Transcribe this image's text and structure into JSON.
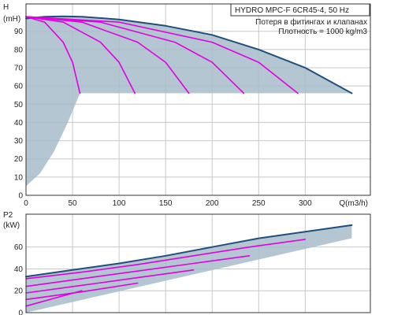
{
  "chart_data": [
    {
      "type": "line",
      "title": "HYDRO MPC-F 6CR45-4, 50 Hz",
      "annotations": [
        "Потеря в фитингах и клапанах",
        "Плотность = 1000 kg/m3"
      ],
      "ylabel": "H",
      "yunit": "(mH)",
      "xlabel": "Q(m3/h)",
      "xlim": [
        0,
        370
      ],
      "ylim": [
        0,
        105
      ],
      "xticks": [
        0,
        50,
        100,
        150,
        200,
        250,
        300
      ],
      "yticks": [
        0,
        10,
        20,
        30,
        40,
        50,
        60,
        70,
        80,
        90
      ],
      "grid": true,
      "colors": {
        "envelope": "#1f4f7a",
        "pump_curves": "#e000e0",
        "area": "#a8bccb"
      },
      "series": [
        {
          "x": [
            0,
            20,
            40,
            60,
            100,
            150,
            200,
            250,
            300,
            350
          ],
          "y": [
            97,
            98,
            98.2,
            98,
            96.5,
            93,
            88,
            80,
            70,
            56
          ]
        },
        {
          "x": [
            0,
            20,
            40,
            50,
            58
          ],
          "y": [
            98,
            95,
            84,
            73,
            56
          ]
        },
        {
          "x": [
            0,
            40,
            80,
            100,
            117
          ],
          "y": [
            98,
            95,
            84,
            73,
            56
          ]
        },
        {
          "x": [
            0,
            60,
            120,
            150,
            175
          ],
          "y": [
            98,
            95,
            84,
            73,
            56
          ]
        },
        {
          "x": [
            0,
            80,
            160,
            200,
            234
          ],
          "y": [
            98,
            95,
            84,
            73,
            56
          ]
        },
        {
          "x": [
            0,
            100,
            200,
            250,
            292
          ],
          "y": [
            98,
            95,
            84,
            73,
            56
          ]
        }
      ],
      "area_left_boundary": {
        "x": [
          0,
          15,
          30,
          45,
          58
        ],
        "y": [
          5,
          12,
          24,
          40,
          56
        ]
      }
    },
    {
      "type": "line",
      "ylabel": "P2",
      "yunit": "(kW)",
      "xlim": [
        0,
        370
      ],
      "ylim": [
        0,
        90
      ],
      "yticks": [
        0,
        20,
        40,
        60
      ],
      "grid": true,
      "colors": {
        "envelope": "#1f4f7a",
        "pump_curves": "#e000e0",
        "area": "#a8bccb"
      },
      "series": [
        {
          "x": [
            0,
            50,
            100,
            150,
            200,
            250,
            300,
            350
          ],
          "y": [
            33,
            39,
            45,
            52,
            60,
            68,
            74,
            80
          ]
        },
        {
          "x": [
            0,
            60,
            120,
            180,
            240,
            300
          ],
          "y": [
            31,
            37,
            44,
            52,
            60,
            67
          ]
        },
        {
          "x": [
            0,
            60,
            120,
            180,
            240
          ],
          "y": [
            24,
            31,
            38,
            45,
            52
          ]
        },
        {
          "x": [
            0,
            60,
            120,
            180
          ],
          "y": [
            18,
            25,
            32,
            39
          ]
        },
        {
          "x": [
            0,
            60,
            120
          ],
          "y": [
            12,
            19,
            27
          ]
        },
        {
          "x": [
            0,
            30,
            60
          ],
          "y": [
            6,
            13,
            20
          ]
        }
      ]
    }
  ]
}
